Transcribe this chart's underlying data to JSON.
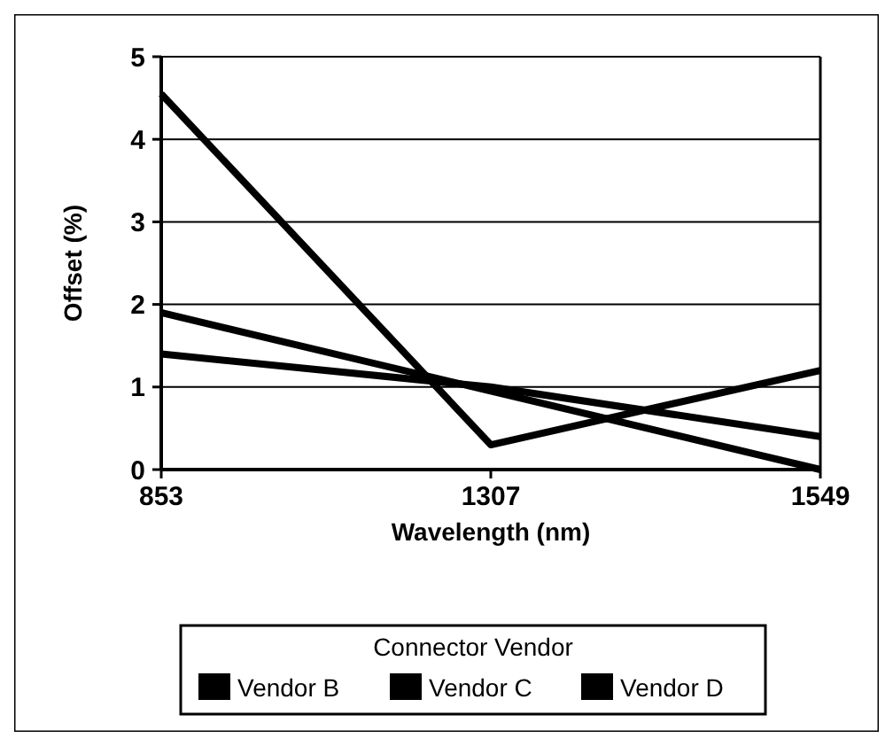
{
  "chart_data": {
    "type": "line",
    "xlabel": "Wavelength (nm)",
    "ylabel": "Offset (%)",
    "legend_title": "Connector Vendor",
    "categories": [
      "853",
      "1307",
      "1549"
    ],
    "series": [
      {
        "name": "Vendor B",
        "color": "#000000",
        "values": [
          4.55,
          0.3,
          1.2
        ]
      },
      {
        "name": "Vendor C",
        "color": "#000000",
        "values": [
          1.9,
          0.95,
          0.0
        ]
      },
      {
        "name": "Vendor D",
        "color": "#000000",
        "values": [
          1.4,
          1.0,
          0.4
        ]
      }
    ],
    "ylim": [
      0,
      5
    ],
    "yticks": [
      0,
      1,
      2,
      3,
      4,
      5
    ],
    "grid": "y",
    "legend": "bottom",
    "marker": "none",
    "line_style": "solid"
  }
}
